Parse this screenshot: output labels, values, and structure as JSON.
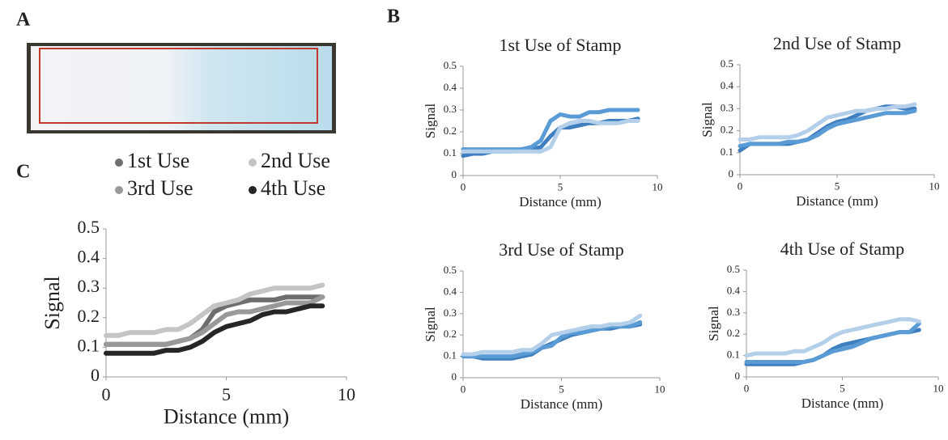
{
  "panel_labels": [
    "A",
    "B",
    "C"
  ],
  "chart_data": [
    {
      "type": "line",
      "title": "1st Use of Stamp",
      "xlabel": "Distance (mm)",
      "ylabel": "Signal",
      "x": [
        0,
        0.5,
        1,
        1.5,
        2,
        2.5,
        3,
        3.5,
        4,
        4.5,
        5,
        5.5,
        6,
        6.5,
        7,
        7.5,
        8,
        8.5,
        9
      ],
      "xlim": [
        0,
        10
      ],
      "ylim": [
        0,
        0.5
      ],
      "xticks": [
        0,
        5,
        10
      ],
      "yticks": [
        0,
        0.1,
        0.2,
        0.3,
        0.4,
        0.5
      ],
      "series": [
        {
          "color": "#3f7fbf",
          "values": [
            0.09,
            0.1,
            0.1,
            0.11,
            0.11,
            0.11,
            0.12,
            0.12,
            0.13,
            0.18,
            0.22,
            0.22,
            0.23,
            0.24,
            0.24,
            0.25,
            0.25,
            0.25,
            0.26
          ]
        },
        {
          "color": "#5b9bd5",
          "values": [
            0.12,
            0.12,
            0.12,
            0.12,
            0.12,
            0.12,
            0.12,
            0.13,
            0.16,
            0.25,
            0.28,
            0.27,
            0.27,
            0.29,
            0.29,
            0.3,
            0.3,
            0.3,
            0.3
          ]
        },
        {
          "color": "#b4cfea",
          "values": [
            0.11,
            0.11,
            0.11,
            0.11,
            0.11,
            0.11,
            0.11,
            0.11,
            0.11,
            0.13,
            0.22,
            0.24,
            0.25,
            0.25,
            0.24,
            0.24,
            0.24,
            0.25,
            0.25
          ]
        }
      ]
    },
    {
      "type": "line",
      "title": "2nd Use of Stamp",
      "xlabel": "Distance (mm)",
      "ylabel": "Signal",
      "x": [
        0,
        0.5,
        1,
        1.5,
        2,
        2.5,
        3,
        3.5,
        4,
        4.5,
        5,
        5.5,
        6,
        6.5,
        7,
        7.5,
        8,
        8.5,
        9
      ],
      "xlim": [
        0,
        10
      ],
      "ylim": [
        0,
        0.5
      ],
      "xticks": [
        0,
        5,
        10
      ],
      "yticks": [
        0,
        0.1,
        0.2,
        0.3,
        0.4,
        0.5
      ],
      "series": [
        {
          "color": "#3f7fbf",
          "values": [
            0.11,
            0.14,
            0.14,
            0.14,
            0.14,
            0.14,
            0.15,
            0.16,
            0.19,
            0.22,
            0.24,
            0.25,
            0.27,
            0.29,
            0.3,
            0.31,
            0.31,
            0.3,
            0.3
          ]
        },
        {
          "color": "#5b9bd5",
          "values": [
            0.13,
            0.14,
            0.14,
            0.14,
            0.14,
            0.15,
            0.15,
            0.16,
            0.18,
            0.21,
            0.23,
            0.24,
            0.25,
            0.26,
            0.27,
            0.28,
            0.28,
            0.28,
            0.29
          ]
        },
        {
          "color": "#b4cfea",
          "values": [
            0.16,
            0.16,
            0.17,
            0.17,
            0.17,
            0.17,
            0.18,
            0.2,
            0.23,
            0.26,
            0.27,
            0.28,
            0.29,
            0.29,
            0.3,
            0.3,
            0.31,
            0.31,
            0.32
          ]
        }
      ]
    },
    {
      "type": "line",
      "title": "3rd Use of Stamp",
      "xlabel": "Distance (mm)",
      "ylabel": "Signal",
      "x": [
        0,
        0.5,
        1,
        1.5,
        2,
        2.5,
        3,
        3.5,
        4,
        4.5,
        5,
        5.5,
        6,
        6.5,
        7,
        7.5,
        8,
        8.5,
        9
      ],
      "xlim": [
        0,
        10
      ],
      "ylim": [
        0,
        0.5
      ],
      "xticks": [
        0,
        5,
        10
      ],
      "yticks": [
        0,
        0.1,
        0.2,
        0.3,
        0.4,
        0.5
      ],
      "series": [
        {
          "color": "#3f7fbf",
          "values": [
            0.1,
            0.1,
            0.09,
            0.09,
            0.09,
            0.09,
            0.1,
            0.11,
            0.14,
            0.16,
            0.18,
            0.2,
            0.21,
            0.22,
            0.23,
            0.23,
            0.24,
            0.24,
            0.25
          ]
        },
        {
          "color": "#5b9bd5",
          "values": [
            0.1,
            0.1,
            0.1,
            0.1,
            0.1,
            0.1,
            0.11,
            0.12,
            0.14,
            0.15,
            0.19,
            0.21,
            0.21,
            0.22,
            0.23,
            0.24,
            0.24,
            0.24,
            0.26
          ]
        },
        {
          "color": "#b4cfea",
          "values": [
            0.11,
            0.11,
            0.12,
            0.12,
            0.12,
            0.12,
            0.13,
            0.13,
            0.16,
            0.2,
            0.21,
            0.22,
            0.23,
            0.24,
            0.24,
            0.25,
            0.25,
            0.26,
            0.29
          ]
        }
      ]
    },
    {
      "type": "line",
      "title": "4th Use of Stamp",
      "xlabel": "Distance (mm)",
      "ylabel": "Signal",
      "x": [
        0,
        0.5,
        1,
        1.5,
        2,
        2.5,
        3,
        3.5,
        4,
        4.5,
        5,
        5.5,
        6,
        6.5,
        7,
        7.5,
        8,
        8.5,
        9
      ],
      "xlim": [
        0,
        10
      ],
      "ylim": [
        0,
        0.5
      ],
      "xticks": [
        0,
        5,
        10
      ],
      "yticks": [
        0,
        0.1,
        0.2,
        0.3,
        0.4,
        0.5
      ],
      "series": [
        {
          "color": "#3f7fbf",
          "values": [
            0.06,
            0.06,
            0.06,
            0.06,
            0.06,
            0.06,
            0.07,
            0.08,
            0.1,
            0.13,
            0.15,
            0.16,
            0.17,
            0.18,
            0.19,
            0.2,
            0.21,
            0.21,
            0.22
          ]
        },
        {
          "color": "#5b9bd5",
          "values": [
            0.07,
            0.07,
            0.07,
            0.07,
            0.07,
            0.07,
            0.07,
            0.08,
            0.1,
            0.12,
            0.13,
            0.14,
            0.16,
            0.18,
            0.19,
            0.2,
            0.21,
            0.21,
            0.25
          ]
        },
        {
          "color": "#b4cfea",
          "values": [
            0.1,
            0.11,
            0.11,
            0.11,
            0.11,
            0.12,
            0.12,
            0.14,
            0.16,
            0.19,
            0.21,
            0.22,
            0.23,
            0.24,
            0.25,
            0.26,
            0.27,
            0.27,
            0.26
          ]
        }
      ]
    },
    {
      "type": "line",
      "xlabel": "Distance (mm)",
      "ylabel": "Signal",
      "legend": "top",
      "x": [
        0,
        0.5,
        1,
        1.5,
        2,
        2.5,
        3,
        3.5,
        4,
        4.5,
        5,
        5.5,
        6,
        6.5,
        7,
        7.5,
        8,
        8.5,
        9
      ],
      "xlim": [
        0,
        10
      ],
      "ylim": [
        0,
        0.5
      ],
      "xticks": [
        0,
        5,
        10
      ],
      "yticks": [
        0,
        0.1,
        0.2,
        0.3,
        0.4,
        0.5
      ],
      "series": [
        {
          "name": "1st Use",
          "color": "#6e6e6e",
          "values": [
            0.11,
            0.11,
            0.11,
            0.11,
            0.11,
            0.11,
            0.12,
            0.13,
            0.16,
            0.22,
            0.24,
            0.25,
            0.26,
            0.26,
            0.26,
            0.27,
            0.27,
            0.27,
            0.27
          ]
        },
        {
          "name": "2nd Use",
          "color": "#c4c4c4",
          "values": [
            0.14,
            0.14,
            0.15,
            0.15,
            0.15,
            0.16,
            0.16,
            0.18,
            0.21,
            0.24,
            0.25,
            0.26,
            0.28,
            0.29,
            0.3,
            0.3,
            0.3,
            0.3,
            0.31
          ]
        },
        {
          "name": "3rd Use",
          "color": "#999999",
          "values": [
            0.11,
            0.11,
            0.11,
            0.11,
            0.11,
            0.11,
            0.12,
            0.13,
            0.15,
            0.18,
            0.21,
            0.22,
            0.22,
            0.23,
            0.24,
            0.25,
            0.25,
            0.25,
            0.27
          ]
        },
        {
          "name": "4th Use",
          "color": "#262626",
          "values": [
            0.08,
            0.08,
            0.08,
            0.08,
            0.08,
            0.09,
            0.09,
            0.1,
            0.12,
            0.15,
            0.17,
            0.18,
            0.19,
            0.21,
            0.22,
            0.22,
            0.23,
            0.24,
            0.24
          ]
        }
      ]
    }
  ]
}
